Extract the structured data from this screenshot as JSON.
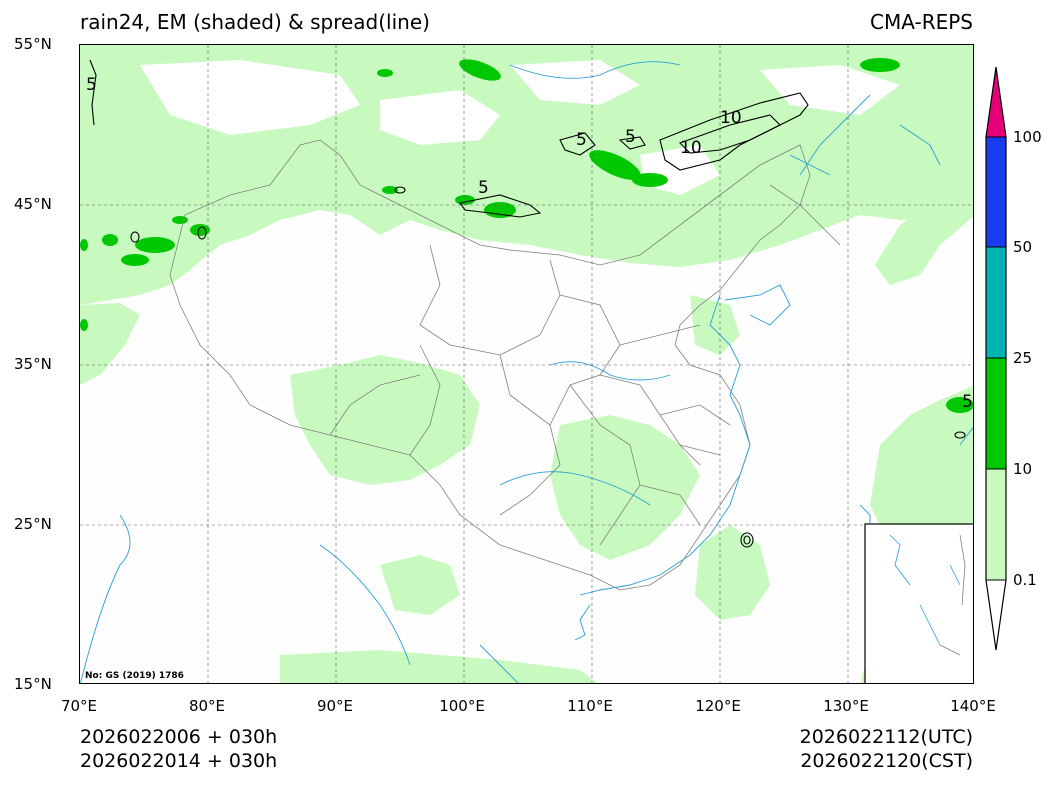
{
  "title": {
    "left": "rain24, EM (shaded) & spread(line)",
    "right": "CMA-REPS"
  },
  "map": {
    "lon_range": [
      70,
      140
    ],
    "lat_range": [
      15,
      55
    ],
    "approval_note": "No: GS (2019) 1786",
    "lat_labels": [
      "55°N",
      "45°N",
      "35°N",
      "25°N",
      "15°N"
    ],
    "lon_labels": [
      "70°E",
      "80°E",
      "90°E",
      "100°E",
      "110°E",
      "120°E",
      "130°E",
      "140°E"
    ],
    "spread_contour_labels": [
      "5",
      "5",
      "5",
      "5",
      "10",
      "10",
      "5"
    ]
  },
  "colorbar": {
    "labels": [
      "100",
      "50",
      "25",
      "10",
      "0.1"
    ],
    "colors": {
      "over": "#e8007a",
      "c50_100": "#1a3cf0",
      "c25_50": "#00b4b4",
      "c10_25": "#00c800",
      "c01_10": "#c8fac0",
      "under": "#ffffff"
    }
  },
  "footer": {
    "left_line1": "2026022006  +  030h",
    "left_line2": "2026022014  +  030h",
    "right_line1": "2026022112(UTC)",
    "right_line2": "2026022120(CST)"
  }
}
